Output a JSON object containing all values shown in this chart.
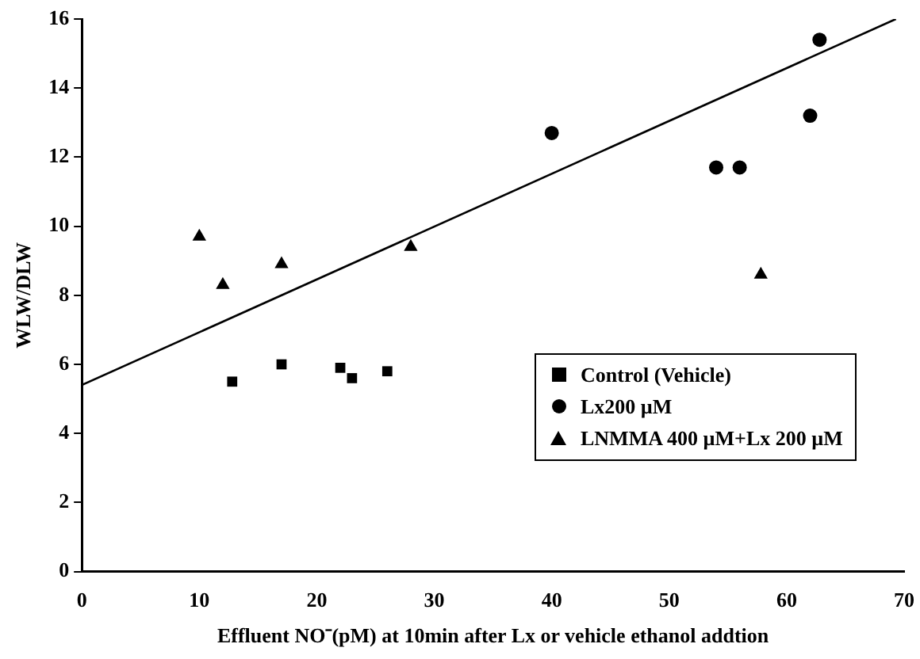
{
  "chart_data": {
    "type": "scatter",
    "xlabel": "Effluent NO⁻(pM) at 10min after Lx or vehicle ethanol addtion",
    "ylabel": "WLW/DLW",
    "xlim": [
      0,
      70
    ],
    "xticks": [
      0,
      10,
      20,
      30,
      40,
      50,
      60,
      70
    ],
    "ylim": [
      0,
      16
    ],
    "yticks": [
      0,
      2,
      4,
      6,
      8,
      10,
      12,
      14,
      16
    ],
    "grid": false,
    "legend": "bottom right",
    "series": [
      {
        "name": "Control (Vehicle)",
        "color": "#000000",
        "marker": "square",
        "x": [
          12.8,
          17,
          22,
          23,
          26
        ],
        "values": [
          5.5,
          6.0,
          5.9,
          5.6,
          5.8
        ]
      },
      {
        "name": "Lx200 µM",
        "color": "#000000",
        "marker": "circle",
        "x": [
          40,
          54,
          56,
          62,
          62.8
        ],
        "values": [
          12.7,
          11.7,
          11.7,
          13.2,
          15.4
        ]
      },
      {
        "name": "LNMMA 400 µM+Lx 200 µM",
        "color": "#000000",
        "marker": "triangle",
        "x": [
          10,
          12,
          17,
          28,
          57.8
        ],
        "values": [
          9.7,
          8.3,
          8.9,
          9.4,
          8.6
        ]
      },
      {
        "type": "line",
        "color": "#000000",
        "marker": "none",
        "line_style": "solid",
        "x": [
          0,
          69.3
        ],
        "values": [
          5.4,
          16
        ]
      }
    ]
  }
}
